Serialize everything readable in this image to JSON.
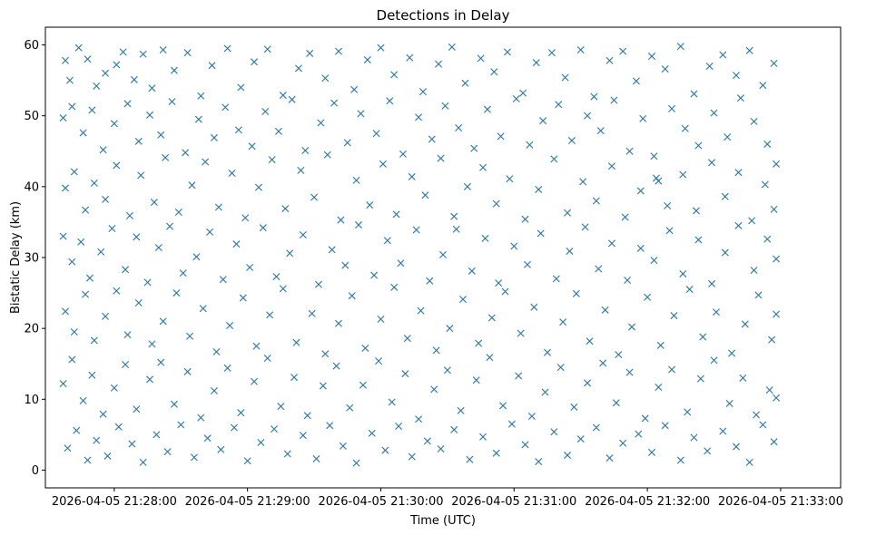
{
  "chart_data": {
    "type": "scatter",
    "title": "Detections in Delay",
    "xlabel": "Time (UTC)",
    "ylabel": "Bistatic Delay (km)",
    "marker": "x",
    "color": "#1f77b4",
    "x_unit": "seconds since 2026-04-05 21:28:00",
    "xlim": [
      -31,
      327
    ],
    "ylim": [
      -2.5,
      62.5
    ],
    "xticks": [
      {
        "value": 0,
        "label": "2026-04-05 21:28:00"
      },
      {
        "value": 60,
        "label": "2026-04-05 21:29:00"
      },
      {
        "value": 120,
        "label": "2026-04-05 21:30:00"
      },
      {
        "value": 180,
        "label": "2026-04-05 21:31:00"
      },
      {
        "value": 240,
        "label": "2026-04-05 21:32:00"
      },
      {
        "value": 300,
        "label": "2026-04-05 21:33:00"
      }
    ],
    "yticks": [
      {
        "value": 0,
        "label": "0"
      },
      {
        "value": 10,
        "label": "10"
      },
      {
        "value": 20,
        "label": "20"
      },
      {
        "value": 30,
        "label": "30"
      },
      {
        "value": 40,
        "label": "40"
      },
      {
        "value": 50,
        "label": "50"
      },
      {
        "value": 60,
        "label": "60"
      }
    ],
    "points": [
      [
        -22,
        57.8
      ],
      [
        -20,
        55.0
      ],
      [
        -16,
        59.6
      ],
      [
        -12,
        58.0
      ],
      [
        -8,
        54.2
      ],
      [
        -4,
        56.0
      ],
      [
        1,
        57.2
      ],
      [
        4,
        59.0
      ],
      [
        9,
        55.1
      ],
      [
        13,
        58.7
      ],
      [
        17,
        53.9
      ],
      [
        22,
        59.3
      ],
      [
        27,
        56.4
      ],
      [
        33,
        58.9
      ],
      [
        39,
        52.8
      ],
      [
        44,
        57.1
      ],
      [
        51,
        59.5
      ],
      [
        57,
        54.0
      ],
      [
        63,
        57.6
      ],
      [
        69,
        59.4
      ],
      [
        76,
        52.9
      ],
      [
        83,
        56.7
      ],
      [
        88,
        58.8
      ],
      [
        95,
        55.3
      ],
      [
        101,
        59.1
      ],
      [
        108,
        53.7
      ],
      [
        114,
        57.9
      ],
      [
        120,
        59.6
      ],
      [
        126,
        55.8
      ],
      [
        133,
        58.2
      ],
      [
        139,
        53.4
      ],
      [
        146,
        57.3
      ],
      [
        152,
        59.7
      ],
      [
        158,
        54.6
      ],
      [
        165,
        58.1
      ],
      [
        171,
        56.2
      ],
      [
        177,
        59.0
      ],
      [
        184,
        53.2
      ],
      [
        190,
        57.5
      ],
      [
        197,
        58.9
      ],
      [
        203,
        55.4
      ],
      [
        210,
        59.3
      ],
      [
        216,
        52.7
      ],
      [
        223,
        57.8
      ],
      [
        229,
        59.1
      ],
      [
        235,
        54.9
      ],
      [
        242,
        58.4
      ],
      [
        248,
        56.6
      ],
      [
        255,
        59.8
      ],
      [
        261,
        53.1
      ],
      [
        268,
        57.0
      ],
      [
        274,
        58.6
      ],
      [
        280,
        55.7
      ],
      [
        286,
        59.2
      ],
      [
        292,
        54.3
      ],
      [
        297,
        57.4
      ],
      [
        -23,
        49.7
      ],
      [
        -19,
        51.3
      ],
      [
        -14,
        47.6
      ],
      [
        -10,
        50.8
      ],
      [
        -5,
        45.2
      ],
      [
        0,
        48.9
      ],
      [
        6,
        51.7
      ],
      [
        11,
        46.4
      ],
      [
        16,
        50.1
      ],
      [
        21,
        47.3
      ],
      [
        26,
        52.0
      ],
      [
        32,
        44.8
      ],
      [
        38,
        49.5
      ],
      [
        45,
        46.9
      ],
      [
        50,
        51.2
      ],
      [
        56,
        48.0
      ],
      [
        62,
        45.7
      ],
      [
        68,
        50.6
      ],
      [
        74,
        47.8
      ],
      [
        80,
        52.3
      ],
      [
        86,
        45.1
      ],
      [
        93,
        49.0
      ],
      [
        99,
        51.8
      ],
      [
        105,
        46.2
      ],
      [
        111,
        50.3
      ],
      [
        118,
        47.5
      ],
      [
        124,
        52.1
      ],
      [
        130,
        44.6
      ],
      [
        137,
        49.8
      ],
      [
        143,
        46.7
      ],
      [
        149,
        51.4
      ],
      [
        155,
        48.3
      ],
      [
        162,
        45.4
      ],
      [
        168,
        50.9
      ],
      [
        174,
        47.1
      ],
      [
        181,
        52.4
      ],
      [
        187,
        45.9
      ],
      [
        193,
        49.3
      ],
      [
        200,
        51.6
      ],
      [
        206,
        46.5
      ],
      [
        213,
        50.0
      ],
      [
        219,
        47.9
      ],
      [
        225,
        52.2
      ],
      [
        232,
        45.0
      ],
      [
        238,
        49.6
      ],
      [
        244,
        41.2
      ],
      [
        245,
        40.8
      ],
      [
        251,
        51.0
      ],
      [
        257,
        48.2
      ],
      [
        263,
        45.8
      ],
      [
        270,
        50.4
      ],
      [
        276,
        47.0
      ],
      [
        282,
        52.5
      ],
      [
        288,
        49.2
      ],
      [
        294,
        46.0
      ],
      [
        298,
        43.2
      ],
      [
        -22,
        39.8
      ],
      [
        -18,
        42.1
      ],
      [
        -13,
        36.7
      ],
      [
        -9,
        40.5
      ],
      [
        -4,
        38.2
      ],
      [
        1,
        43.0
      ],
      [
        7,
        35.9
      ],
      [
        12,
        41.6
      ],
      [
        18,
        37.8
      ],
      [
        23,
        44.1
      ],
      [
        29,
        36.4
      ],
      [
        35,
        40.2
      ],
      [
        41,
        43.5
      ],
      [
        47,
        37.1
      ],
      [
        53,
        41.9
      ],
      [
        59,
        35.6
      ],
      [
        65,
        39.9
      ],
      [
        71,
        43.8
      ],
      [
        77,
        36.9
      ],
      [
        84,
        42.3
      ],
      [
        90,
        38.5
      ],
      [
        96,
        44.5
      ],
      [
        102,
        35.3
      ],
      [
        109,
        40.9
      ],
      [
        115,
        37.4
      ],
      [
        121,
        43.2
      ],
      [
        127,
        36.1
      ],
      [
        134,
        41.4
      ],
      [
        140,
        38.8
      ],
      [
        147,
        44.0
      ],
      [
        153,
        35.8
      ],
      [
        159,
        40.0
      ],
      [
        166,
        42.7
      ],
      [
        172,
        37.6
      ],
      [
        178,
        41.1
      ],
      [
        185,
        35.4
      ],
      [
        191,
        39.6
      ],
      [
        198,
        43.9
      ],
      [
        204,
        36.3
      ],
      [
        211,
        40.7
      ],
      [
        217,
        38.0
      ],
      [
        224,
        42.9
      ],
      [
        230,
        35.7
      ],
      [
        237,
        39.4
      ],
      [
        243,
        44.3
      ],
      [
        249,
        37.3
      ],
      [
        256,
        41.7
      ],
      [
        262,
        36.6
      ],
      [
        269,
        43.4
      ],
      [
        275,
        38.6
      ],
      [
        281,
        42.0
      ],
      [
        287,
        35.2
      ],
      [
        293,
        40.3
      ],
      [
        297,
        36.8
      ],
      [
        -23,
        33.0
      ],
      [
        -19,
        29.4
      ],
      [
        -15,
        32.2
      ],
      [
        -11,
        27.1
      ],
      [
        -6,
        30.8
      ],
      [
        -1,
        34.1
      ],
      [
        5,
        28.3
      ],
      [
        10,
        32.9
      ],
      [
        15,
        26.5
      ],
      [
        20,
        31.4
      ],
      [
        25,
        34.4
      ],
      [
        31,
        27.8
      ],
      [
        37,
        30.1
      ],
      [
        43,
        33.6
      ],
      [
        49,
        26.9
      ],
      [
        55,
        31.9
      ],
      [
        61,
        28.6
      ],
      [
        67,
        34.2
      ],
      [
        73,
        27.3
      ],
      [
        79,
        30.6
      ],
      [
        85,
        33.2
      ],
      [
        92,
        26.2
      ],
      [
        98,
        31.1
      ],
      [
        104,
        28.9
      ],
      [
        110,
        34.6
      ],
      [
        117,
        27.5
      ],
      [
        123,
        32.4
      ],
      [
        129,
        29.2
      ],
      [
        136,
        33.9
      ],
      [
        142,
        26.7
      ],
      [
        148,
        30.4
      ],
      [
        154,
        34.0
      ],
      [
        161,
        28.1
      ],
      [
        167,
        32.7
      ],
      [
        173,
        26.4
      ],
      [
        180,
        31.6
      ],
      [
        186,
        29.0
      ],
      [
        192,
        33.4
      ],
      [
        199,
        27.0
      ],
      [
        205,
        30.9
      ],
      [
        212,
        34.3
      ],
      [
        218,
        28.4
      ],
      [
        224,
        32.0
      ],
      [
        231,
        26.8
      ],
      [
        237,
        31.3
      ],
      [
        243,
        29.6
      ],
      [
        250,
        33.8
      ],
      [
        256,
        27.7
      ],
      [
        263,
        32.5
      ],
      [
        269,
        26.3
      ],
      [
        275,
        30.7
      ],
      [
        281,
        34.5
      ],
      [
        288,
        28.2
      ],
      [
        294,
        32.6
      ],
      [
        298,
        29.8
      ],
      [
        -22,
        22.4
      ],
      [
        -18,
        19.5
      ],
      [
        -13,
        24.8
      ],
      [
        -9,
        18.3
      ],
      [
        -4,
        21.7
      ],
      [
        1,
        25.3
      ],
      [
        6,
        19.1
      ],
      [
        11,
        23.6
      ],
      [
        17,
        17.8
      ],
      [
        22,
        21.0
      ],
      [
        28,
        25.0
      ],
      [
        34,
        18.9
      ],
      [
        40,
        22.8
      ],
      [
        46,
        16.7
      ],
      [
        52,
        20.4
      ],
      [
        58,
        24.3
      ],
      [
        64,
        17.5
      ],
      [
        70,
        21.9
      ],
      [
        76,
        25.6
      ],
      [
        82,
        18.0
      ],
      [
        89,
        22.1
      ],
      [
        95,
        16.4
      ],
      [
        101,
        20.7
      ],
      [
        107,
        24.6
      ],
      [
        113,
        17.2
      ],
      [
        120,
        21.3
      ],
      [
        126,
        25.8
      ],
      [
        132,
        18.6
      ],
      [
        138,
        22.5
      ],
      [
        145,
        16.9
      ],
      [
        151,
        20.0
      ],
      [
        157,
        24.1
      ],
      [
        164,
        17.9
      ],
      [
        170,
        21.5
      ],
      [
        176,
        25.2
      ],
      [
        183,
        19.3
      ],
      [
        189,
        23.0
      ],
      [
        195,
        16.6
      ],
      [
        202,
        20.9
      ],
      [
        208,
        24.9
      ],
      [
        214,
        18.2
      ],
      [
        221,
        22.6
      ],
      [
        227,
        16.3
      ],
      [
        233,
        20.2
      ],
      [
        240,
        24.4
      ],
      [
        246,
        17.6
      ],
      [
        252,
        21.8
      ],
      [
        259,
        25.5
      ],
      [
        265,
        18.8
      ],
      [
        271,
        22.3
      ],
      [
        278,
        16.5
      ],
      [
        284,
        20.6
      ],
      [
        290,
        24.7
      ],
      [
        296,
        18.4
      ],
      [
        298,
        22.0
      ],
      [
        -23,
        12.2
      ],
      [
        -19,
        15.6
      ],
      [
        -14,
        9.8
      ],
      [
        -10,
        13.4
      ],
      [
        -5,
        7.9
      ],
      [
        0,
        11.6
      ],
      [
        5,
        14.9
      ],
      [
        10,
        8.6
      ],
      [
        16,
        12.8
      ],
      [
        21,
        15.2
      ],
      [
        27,
        9.3
      ],
      [
        33,
        13.9
      ],
      [
        39,
        7.4
      ],
      [
        45,
        11.2
      ],
      [
        51,
        14.4
      ],
      [
        57,
        8.1
      ],
      [
        63,
        12.5
      ],
      [
        69,
        15.8
      ],
      [
        75,
        9.0
      ],
      [
        81,
        13.1
      ],
      [
        87,
        7.7
      ],
      [
        94,
        11.9
      ],
      [
        100,
        14.7
      ],
      [
        106,
        8.8
      ],
      [
        112,
        12.0
      ],
      [
        119,
        15.4
      ],
      [
        125,
        9.6
      ],
      [
        131,
        13.6
      ],
      [
        137,
        7.2
      ],
      [
        144,
        11.4
      ],
      [
        150,
        14.1
      ],
      [
        156,
        8.4
      ],
      [
        163,
        12.7
      ],
      [
        169,
        15.9
      ],
      [
        175,
        9.1
      ],
      [
        182,
        13.3
      ],
      [
        188,
        7.6
      ],
      [
        194,
        11.0
      ],
      [
        201,
        14.5
      ],
      [
        207,
        8.9
      ],
      [
        213,
        12.3
      ],
      [
        220,
        15.1
      ],
      [
        226,
        9.5
      ],
      [
        232,
        13.8
      ],
      [
        239,
        7.3
      ],
      [
        245,
        11.7
      ],
      [
        251,
        14.2
      ],
      [
        258,
        8.2
      ],
      [
        264,
        12.9
      ],
      [
        270,
        15.5
      ],
      [
        277,
        9.4
      ],
      [
        283,
        13.0
      ],
      [
        289,
        7.8
      ],
      [
        295,
        11.3
      ],
      [
        298,
        10.2
      ],
      [
        -21,
        3.1
      ],
      [
        -17,
        5.6
      ],
      [
        -12,
        1.4
      ],
      [
        -8,
        4.2
      ],
      [
        -3,
        2.0
      ],
      [
        2,
        6.1
      ],
      [
        8,
        3.7
      ],
      [
        13,
        1.1
      ],
      [
        19,
        5.0
      ],
      [
        24,
        2.6
      ],
      [
        30,
        6.4
      ],
      [
        36,
        1.8
      ],
      [
        42,
        4.5
      ],
      [
        48,
        2.9
      ],
      [
        54,
        6.0
      ],
      [
        60,
        1.3
      ],
      [
        66,
        3.9
      ],
      [
        72,
        5.8
      ],
      [
        78,
        2.3
      ],
      [
        85,
        4.9
      ],
      [
        91,
        1.6
      ],
      [
        97,
        6.3
      ],
      [
        103,
        3.4
      ],
      [
        109,
        1.0
      ],
      [
        116,
        5.2
      ],
      [
        122,
        2.8
      ],
      [
        128,
        6.2
      ],
      [
        134,
        1.9
      ],
      [
        141,
        4.1
      ],
      [
        147,
        3.0
      ],
      [
        153,
        5.7
      ],
      [
        160,
        1.5
      ],
      [
        166,
        4.7
      ],
      [
        172,
        2.4
      ],
      [
        179,
        6.5
      ],
      [
        185,
        3.6
      ],
      [
        191,
        1.2
      ],
      [
        198,
        5.4
      ],
      [
        204,
        2.1
      ],
      [
        210,
        4.4
      ],
      [
        217,
        6.0
      ],
      [
        223,
        1.7
      ],
      [
        229,
        3.8
      ],
      [
        236,
        5.1
      ],
      [
        242,
        2.5
      ],
      [
        248,
        6.3
      ],
      [
        255,
        1.4
      ],
      [
        261,
        4.6
      ],
      [
        267,
        2.7
      ],
      [
        274,
        5.5
      ],
      [
        280,
        3.3
      ],
      [
        286,
        1.1
      ],
      [
        292,
        6.4
      ],
      [
        297,
        4.0
      ]
    ]
  }
}
